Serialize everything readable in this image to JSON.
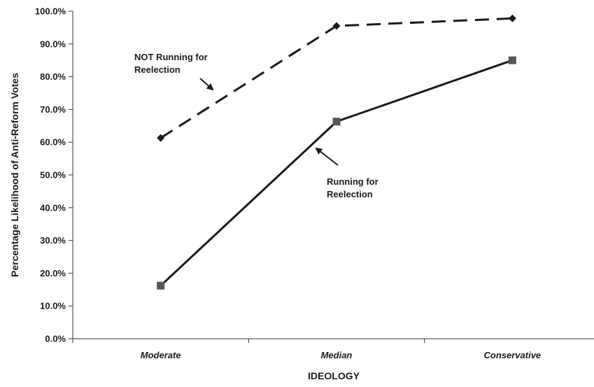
{
  "chart_data": {
    "type": "line",
    "categories": [
      "Moderate",
      "Median",
      "Conservative"
    ],
    "series": [
      {
        "key": "not_running",
        "values": [
          61.3,
          95.5,
          97.8
        ],
        "line_style": "dashed",
        "marker": "diamond",
        "color": "#1a1a1a"
      },
      {
        "key": "running",
        "values": [
          16.2,
          66.3,
          85.0
        ],
        "line_style": "solid",
        "marker": "square",
        "color": "#1a1a1a",
        "marker_color": "#555555"
      }
    ],
    "annotations": [
      {
        "series": "not_running",
        "lines": [
          "NOT Running for",
          "Reelection"
        ]
      },
      {
        "series": "running",
        "lines": [
          "Running for",
          "Reelection"
        ]
      }
    ],
    "xlabel": "IDEOLOGY",
    "ylabel": "Percentage Likelihood of Anti-Reform Votes",
    "ylim": [
      0,
      100
    ],
    "yticks": [
      "0.0%",
      "10.0%",
      "20.0%",
      "30.0%",
      "40.0%",
      "50.0%",
      "60.0%",
      "70.0%",
      "80.0%",
      "90.0%",
      "100.0%"
    ],
    "grid": false,
    "legend": "none"
  }
}
